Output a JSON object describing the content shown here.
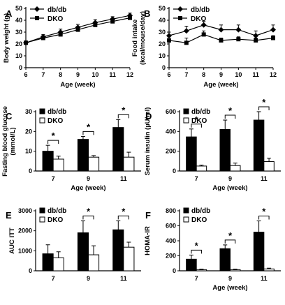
{
  "chart_data": [
    {
      "panel": "A",
      "type": "line",
      "xlabel": "Age (week)",
      "ylabel": "Body weight (g)",
      "x": [
        6,
        7,
        8,
        9,
        10,
        11,
        12
      ],
      "xlim": [
        6,
        12
      ],
      "ylim": [
        0,
        50
      ],
      "yticks": [
        0,
        10,
        20,
        30,
        40,
        50
      ],
      "legend_position": "top-left",
      "series": [
        {
          "name": "db/db",
          "marker": "diamond",
          "values": [
            21,
            26,
            30,
            34,
            38,
            41,
            44
          ],
          "errors": [
            1.5,
            2,
            2.5,
            2.5,
            2.5,
            2,
            2
          ]
        },
        {
          "name": "DKO",
          "marker": "square",
          "values": [
            21,
            25,
            28,
            32,
            36,
            39,
            42
          ],
          "errors": [
            1.5,
            2,
            2,
            2,
            2,
            2,
            2
          ]
        }
      ]
    },
    {
      "panel": "B",
      "type": "line",
      "xlabel": "Age (week)",
      "ylabel": "Food intake (kcal/mouse/day)",
      "ylabel_lines": [
        "Food intake",
        "(kcal/mouse/day)"
      ],
      "x": [
        6,
        7,
        8,
        9,
        10,
        11,
        12
      ],
      "xlim": [
        6,
        12
      ],
      "ylim": [
        0,
        50
      ],
      "yticks": [
        0,
        10,
        20,
        30,
        40,
        50
      ],
      "legend_position": "top-left",
      "series": [
        {
          "name": "db/db",
          "marker": "diamond",
          "values": [
            27,
            31,
            36,
            32,
            32,
            27,
            32
          ],
          "errors": [
            3,
            4,
            3,
            4,
            4,
            4,
            4
          ]
        },
        {
          "name": "DKO",
          "marker": "square",
          "values": [
            23,
            21,
            28,
            23,
            24,
            23,
            25
          ],
          "errors": [
            3,
            4,
            3,
            2,
            2,
            2,
            2
          ]
        }
      ]
    },
    {
      "panel": "C",
      "type": "bar",
      "xlabel": "Age (week)",
      "ylabel": "Fasting blood glucose (mmol/L)",
      "ylabel_lines": [
        "Fasting blood glucose",
        "(mmol/L)"
      ],
      "categories": [
        "7",
        "9",
        "11"
      ],
      "ylim": [
        0,
        30
      ],
      "yticks": [
        0,
        10,
        20,
        30
      ],
      "legend_position": "top-left",
      "significance": [
        "*",
        "*",
        "*"
      ],
      "series": [
        {
          "name": "db/db",
          "fill": "black",
          "values": [
            10,
            16,
            22
          ],
          "errors": [
            3,
            1.5,
            4
          ]
        },
        {
          "name": "DKO",
          "fill": "white",
          "values": [
            6,
            7,
            7
          ],
          "errors": [
            1.5,
            0.8,
            2.5
          ]
        }
      ]
    },
    {
      "panel": "D",
      "type": "bar",
      "xlabel": "Age (week)",
      "ylabel": "Serum insulin (µU/ml)",
      "categories": [
        "7",
        "9",
        "11"
      ],
      "ylim": [
        0,
        600
      ],
      "yticks": [
        0,
        200,
        400,
        600
      ],
      "legend_position": "top-left",
      "significance": [
        "*",
        "*",
        "*"
      ],
      "series": [
        {
          "name": "db/db",
          "fill": "black",
          "values": [
            345,
            420,
            515
          ],
          "errors": [
            80,
            95,
            85
          ]
        },
        {
          "name": "DKO",
          "fill": "white",
          "values": [
            50,
            55,
            95
          ],
          "errors": [
            10,
            25,
            35
          ]
        }
      ]
    },
    {
      "panel": "E",
      "type": "bar",
      "xlabel": "",
      "ylabel": "AUC ITT",
      "categories": [
        "7",
        "9",
        "11"
      ],
      "ylim": [
        0,
        3000
      ],
      "yticks": [
        0,
        1000,
        2000,
        3000
      ],
      "legend_position": "top-left",
      "significance": [
        "",
        "*",
        "*"
      ],
      "series": [
        {
          "name": "db/db",
          "fill": "black",
          "values": [
            850,
            1900,
            2050
          ],
          "errors": [
            450,
            600,
            450
          ]
        },
        {
          "name": "DKO",
          "fill": "white",
          "values": [
            650,
            800,
            1180
          ],
          "errors": [
            300,
            450,
            250
          ]
        }
      ]
    },
    {
      "panel": "F",
      "type": "bar",
      "xlabel": "Age (week)",
      "ylabel": "HOMA-IR",
      "categories": [
        "7",
        "9",
        "11"
      ],
      "ylim": [
        0,
        800
      ],
      "yticks": [
        0,
        200,
        400,
        600,
        800
      ],
      "legend_position": "top-left",
      "significance": [
        "*",
        "*",
        "*"
      ],
      "series": [
        {
          "name": "db/db",
          "fill": "black",
          "values": [
            155,
            295,
            515
          ],
          "errors": [
            55,
            50,
            150
          ]
        },
        {
          "name": "DKO",
          "fill": "white",
          "values": [
            15,
            15,
            25
          ],
          "errors": [
            8,
            8,
            10
          ]
        }
      ]
    }
  ]
}
